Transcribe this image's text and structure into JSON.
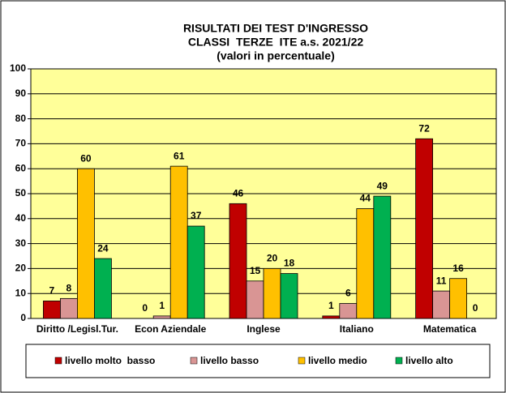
{
  "chart_data": {
    "type": "bar",
    "title": "RISULTATI DEI TEST D'INGRESSO",
    "subtitle": [
      "CLASSI  TERZE  ITE a.s. 2021/22",
      "(valori in percentuale)"
    ],
    "categories": [
      "Diritto /Legisl.Tur.",
      "Econ Aziendale",
      "Inglese",
      "Italiano",
      "Matematica"
    ],
    "series": [
      {
        "name": "livello molto  basso",
        "color": "#c00000",
        "values": [
          7,
          0,
          46,
          1,
          72
        ]
      },
      {
        "name": "livello basso",
        "color": "#d99594",
        "values": [
          8,
          1,
          15,
          6,
          11
        ]
      },
      {
        "name": "livello medio",
        "color": "#ffc000",
        "values": [
          60,
          61,
          20,
          44,
          16
        ]
      },
      {
        "name": "livello alto",
        "color": "#00b050",
        "values": [
          24,
          37,
          18,
          49,
          0
        ]
      }
    ],
    "ylim": [
      0,
      100
    ],
    "yticks": [
      0,
      10,
      20,
      30,
      40,
      50,
      60,
      70,
      80,
      90,
      100
    ],
    "grid": true,
    "legend": "bottom"
  }
}
